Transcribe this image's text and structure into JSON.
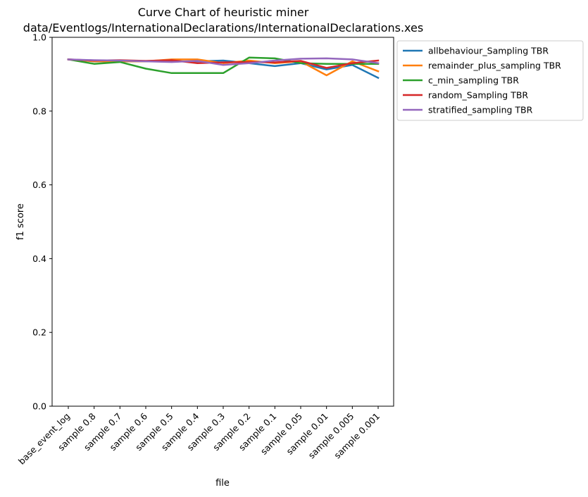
{
  "chart_data": {
    "type": "line",
    "title": "Curve Chart of heuristic miner",
    "subtitle": "data/Eventlogs/InternationalDeclarations/InternationalDeclarations.xes",
    "xlabel": "file",
    "ylabel": "f1 score",
    "ylim": [
      0.0,
      1.0
    ],
    "yticks": [
      "0.0",
      "0.2",
      "0.4",
      "0.6",
      "0.8",
      "1.0"
    ],
    "grid": false,
    "legend_position": "outside-top-right",
    "categories": [
      "base_event_log",
      "sample 0.8",
      "sample 0.7",
      "sample 0.6",
      "sample 0.5",
      "sample 0.4",
      "sample 0.3",
      "sample 0.2",
      "sample 0.1",
      "sample 0.05",
      "sample 0.01",
      "sample 0.005",
      "sample 0.001"
    ],
    "series": [
      {
        "name": "allbehaviour_Sampling TBR",
        "color": "#1f77b4",
        "values": [
          0.94,
          0.935,
          0.935,
          0.935,
          0.935,
          0.935,
          0.937,
          0.93,
          0.922,
          0.93,
          0.913,
          0.925,
          0.89
        ]
      },
      {
        "name": "remainder_plus_sampling TBR",
        "color": "#ff7f0e",
        "values": [
          0.94,
          0.935,
          0.935,
          0.935,
          0.94,
          0.94,
          0.93,
          0.937,
          0.93,
          0.935,
          0.897,
          0.935,
          0.908
        ]
      },
      {
        "name": "c_min_sampling TBR",
        "color": "#2ca02c",
        "values": [
          0.94,
          0.928,
          0.933,
          0.915,
          0.903,
          0.903,
          0.903,
          0.945,
          0.943,
          0.93,
          0.928,
          0.928,
          0.928
        ]
      },
      {
        "name": "random_Sampling TBR",
        "color": "#d62728",
        "values": [
          0.94,
          0.937,
          0.938,
          0.936,
          0.938,
          0.93,
          0.932,
          0.933,
          0.932,
          0.936,
          0.917,
          0.93,
          0.937
        ]
      },
      {
        "name": "stratified_sampling TBR",
        "color": "#9467bd",
        "values": [
          0.94,
          0.938,
          0.937,
          0.935,
          0.933,
          0.936,
          0.925,
          0.93,
          0.937,
          0.942,
          0.943,
          0.94,
          0.93
        ]
      }
    ]
  }
}
